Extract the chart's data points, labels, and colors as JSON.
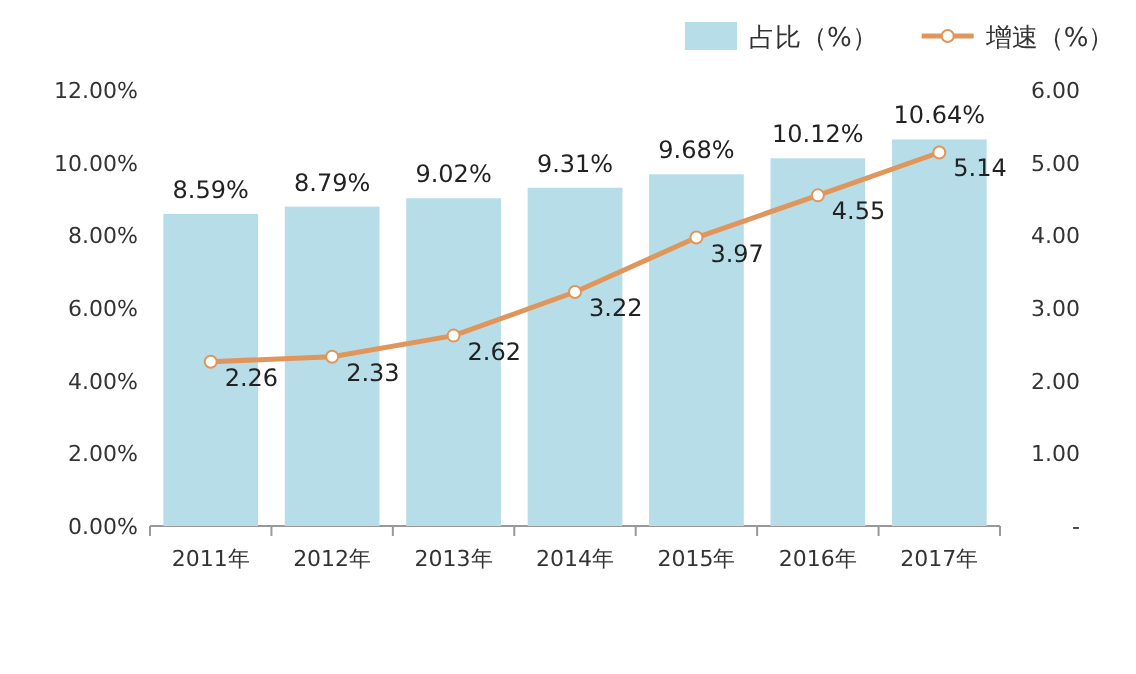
{
  "chart_data": {
    "type": "bar",
    "categories": [
      "2011年",
      "2012年",
      "2013年",
      "2014年",
      "2015年",
      "2016年",
      "2017年"
    ],
    "series": [
      {
        "name": "占比（%）",
        "color": "#b7dde8",
        "values": [
          8.59,
          8.79,
          9.02,
          9.31,
          9.68,
          10.12,
          10.64
        ],
        "value_labels": [
          "8.59%",
          "8.79%",
          "9.02%",
          "9.31%",
          "9.68%",
          "10.12%",
          "10.64%"
        ]
      },
      {
        "name": "增速（%）",
        "type": "line",
        "axis": "y2",
        "color": "#e0955a",
        "values": [
          2.26,
          2.33,
          2.62,
          3.22,
          3.97,
          4.55,
          5.14
        ],
        "value_labels": [
          "2.26",
          "2.33",
          "2.62",
          "3.22",
          "3.97",
          "4.55",
          "5.14"
        ]
      }
    ],
    "ylim": [
      0,
      12
    ],
    "yticks": [
      {
        "value": 0,
        "label": "0.00%"
      },
      {
        "value": 2,
        "label": "2.00%"
      },
      {
        "value": 4,
        "label": "4.00%"
      },
      {
        "value": 6,
        "label": "6.00%"
      },
      {
        "value": 8,
        "label": "8.00%"
      },
      {
        "value": 10,
        "label": "10.00%"
      },
      {
        "value": 12,
        "label": "12.00%"
      }
    ],
    "y2lim": [
      0,
      6
    ],
    "y2ticks": [
      {
        "value": 0,
        "label": "-"
      },
      {
        "value": 1,
        "label": "1.00"
      },
      {
        "value": 2,
        "label": "2.00"
      },
      {
        "value": 3,
        "label": "3.00"
      },
      {
        "value": 4,
        "label": "4.00"
      },
      {
        "value": 5,
        "label": "5.00"
      },
      {
        "value": 6,
        "label": "6.00"
      }
    ],
    "legend": "top",
    "marker": "circle",
    "line_style": "solid"
  }
}
